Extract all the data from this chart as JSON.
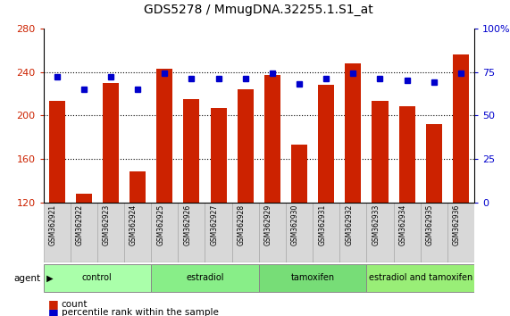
{
  "title": "GDS5278 / MmugDNA.32255.1.S1_at",
  "samples": [
    "GSM362921",
    "GSM362922",
    "GSM362923",
    "GSM362924",
    "GSM362925",
    "GSM362926",
    "GSM362927",
    "GSM362928",
    "GSM362929",
    "GSM362930",
    "GSM362931",
    "GSM362932",
    "GSM362933",
    "GSM362934",
    "GSM362935",
    "GSM362936"
  ],
  "counts": [
    213,
    128,
    230,
    148,
    243,
    215,
    207,
    224,
    237,
    173,
    228,
    248,
    213,
    208,
    192,
    256
  ],
  "percentile_ranks": [
    72,
    65,
    72,
    65,
    74,
    71,
    71,
    71,
    74,
    68,
    71,
    74,
    71,
    70,
    69,
    74
  ],
  "groups": [
    {
      "label": "control",
      "start": 0,
      "end": 4,
      "color": "#aaffaa"
    },
    {
      "label": "estradiol",
      "start": 4,
      "end": 8,
      "color": "#88ee88"
    },
    {
      "label": "tamoxifen",
      "start": 8,
      "end": 12,
      "color": "#77dd77"
    },
    {
      "label": "estradiol and tamoxifen",
      "start": 12,
      "end": 16,
      "color": "#99ee77"
    }
  ],
  "bar_color": "#cc2200",
  "dot_color": "#0000cc",
  "ymin": 120,
  "ymax": 280,
  "y_ticks": [
    120,
    160,
    200,
    240,
    280
  ],
  "y2min": 0,
  "y2max": 100,
  "y2_ticks": [
    0,
    25,
    50,
    75,
    100
  ],
  "y2_ticklabels": [
    "0",
    "25",
    "50",
    "75",
    "100%"
  ],
  "bg_color": "#ffffff",
  "bar_color_hex": "#cc2200",
  "dot_color_hex": "#0000cc",
  "tick_color_left": "#cc2200",
  "tick_color_right": "#0000cc",
  "title_fontsize": 10,
  "tick_fontsize": 8,
  "label_fontsize": 7,
  "group_fontsize": 7
}
